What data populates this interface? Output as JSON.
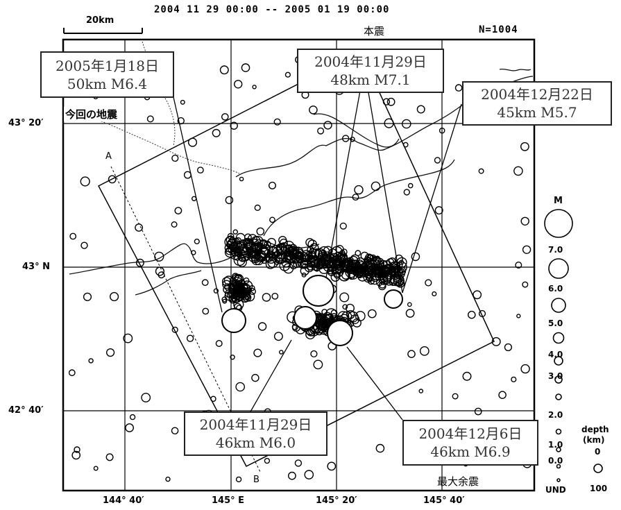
{
  "header": {
    "period": "2004  11  29  00:00  --  2005  01  19  00:00",
    "count": "N=1004"
  },
  "scale_bar": {
    "label": "20km"
  },
  "annotations": {
    "mainshock": "本震",
    "this_quake": "今回の地震",
    "largest_aftershock": "最大余震",
    "point_a": "A",
    "point_b": "B"
  },
  "event_boxes": [
    {
      "date": "2005年1月18日",
      "detail": "50km  M6.4"
    },
    {
      "date": "2004年11月29日",
      "detail": "48km  M7.1"
    },
    {
      "date": "2004年12月22日",
      "detail": "45km  M5.7"
    },
    {
      "date": "2004年11月29日",
      "detail": "46km  M6.0"
    },
    {
      "date": "2004年12月6日",
      "detail": "46km  M6.9"
    }
  ],
  "axes": {
    "lat_labels": [
      "43° 20′",
      "43° N",
      "42° 40′"
    ],
    "lon_labels": [
      "144° 40′",
      "145° E",
      "145° 20′",
      "145° 40′"
    ]
  },
  "magnitude_legend": {
    "title": "M",
    "labels": [
      "7.0",
      "6.0",
      "5.0",
      "4.0",
      "3.0",
      "2.0",
      "1.0",
      "0.0",
      "UND"
    ]
  },
  "depth_legend": {
    "title": "depth",
    "unit": "(km)",
    "labels": [
      "0",
      "100"
    ]
  },
  "colors": {
    "ink": "#000000",
    "box_text": "#333333",
    "coast": "#111111"
  }
}
